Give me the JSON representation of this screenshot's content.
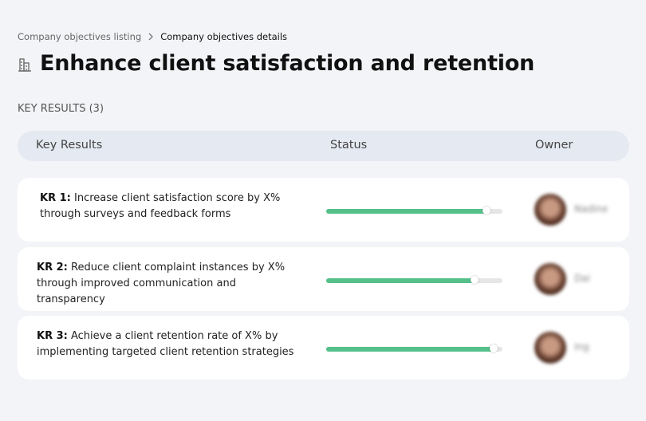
{
  "breadcrumb": {
    "items": [
      "Company objectives listing",
      "Company objectives details"
    ]
  },
  "header": {
    "title": "Enhance client satisfaction and retention"
  },
  "section": {
    "label": "KEY RESULTS (3)"
  },
  "table": {
    "columns": [
      "Key Results",
      "Status",
      "Owner"
    ],
    "rows": [
      {
        "label": "KR 1:",
        "text": "Increase client satisfaction score by X% through surveys and feedback forms",
        "progress": 91,
        "owner": "Nadine"
      },
      {
        "label": "KR 2:",
        "text": "Reduce client complaint instances by X% through improved communication and transparency",
        "progress": 84,
        "owner": "Dai"
      },
      {
        "label": "KR 3:",
        "text": "Achieve a client retention rate of X% by implementing targeted client retention strategies",
        "progress": 95,
        "owner": "Ing"
      }
    ]
  }
}
